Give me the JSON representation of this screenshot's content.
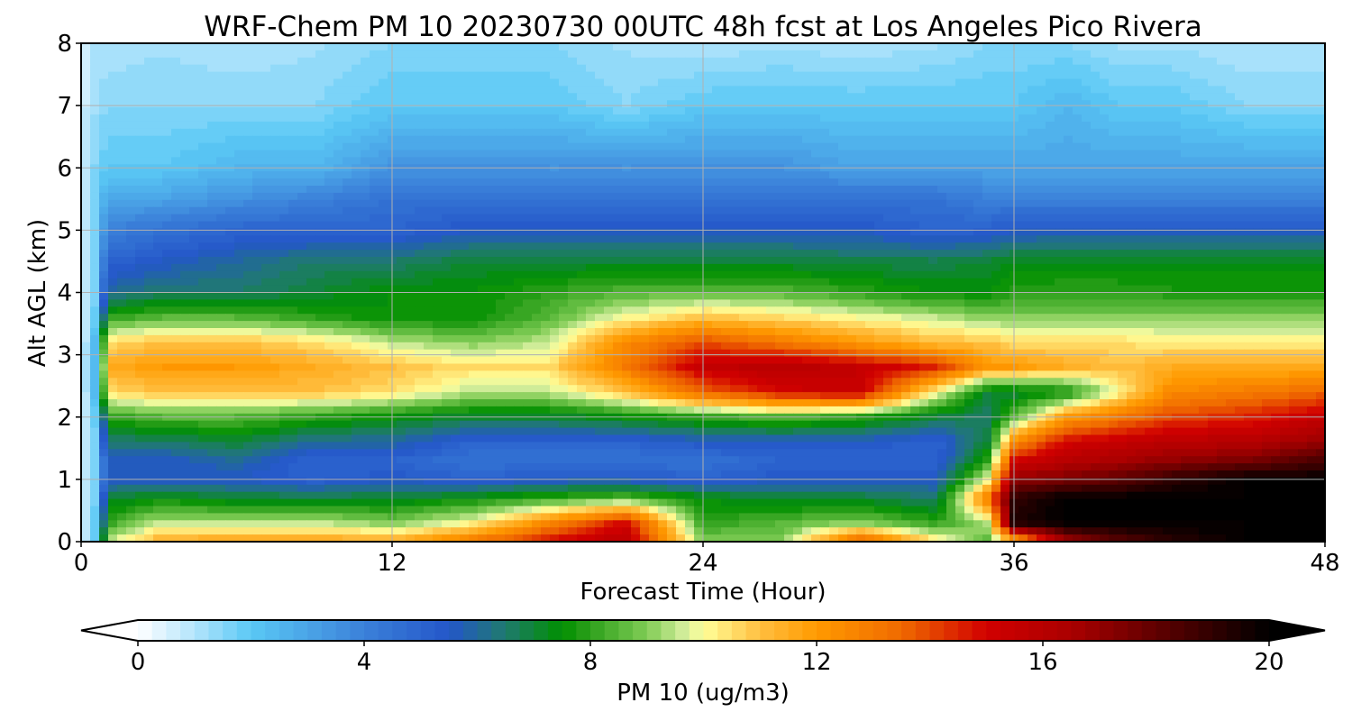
{
  "chart_data": {
    "type": "heatmap",
    "title": "WRF-Chem PM 10  20230730 00UTC 48h fcst at Los Angeles Pico Rivera",
    "xlabel": "Forecast Time (Hour)",
    "ylabel": "Alt AGL (km)",
    "xlim": [
      0,
      48
    ],
    "ylim": [
      0,
      8
    ],
    "x_ticks": [
      "0",
      "12",
      "24",
      "36",
      "48"
    ],
    "y_ticks": [
      "0",
      "1",
      "2",
      "3",
      "4",
      "5",
      "6",
      "7",
      "8"
    ],
    "grid": true,
    "colorbar": {
      "label": "PM 10  (ug/m3)",
      "range": [
        0,
        20
      ],
      "ticks": [
        "0",
        "4",
        "8",
        "12",
        "16",
        "20"
      ],
      "extend": "both",
      "placement": "bottom",
      "color_stops": [
        [
          0,
          "#ffffff"
        ],
        [
          1,
          "#b3e5fc"
        ],
        [
          2,
          "#5ac8f5"
        ],
        [
          4,
          "#3b80d9"
        ],
        [
          5.5,
          "#2457c9"
        ],
        [
          6.5,
          "#1f7a6e"
        ],
        [
          7.5,
          "#009000"
        ],
        [
          8,
          "#2ea01c"
        ],
        [
          9,
          "#80cc55"
        ],
        [
          9.7,
          "#d8f0a0"
        ],
        [
          10,
          "#ffff99"
        ],
        [
          11,
          "#ffbf40"
        ],
        [
          12,
          "#ff9a00"
        ],
        [
          13.5,
          "#f06a00"
        ],
        [
          15,
          "#d10000"
        ],
        [
          16.5,
          "#aa0000"
        ],
        [
          18,
          "#600000"
        ],
        [
          20,
          "#000000"
        ]
      ]
    },
    "field_description_levels": {
      "hours": [
        0,
        0.5,
        1,
        3,
        6,
        9,
        12,
        15,
        18,
        21,
        24,
        27,
        30,
        33,
        35,
        36,
        38,
        40,
        42,
        45,
        48
      ],
      "altitudes_km": [
        0,
        0.3,
        0.7,
        1.0,
        1.3,
        1.6,
        2.0,
        2.4,
        2.8,
        3.2,
        3.6,
        4.0,
        4.5,
        5.0,
        5.5,
        6.0,
        7.0,
        8.0
      ],
      "values": [
        [
          0.5,
          1.5,
          9.5,
          11.5,
          11.8,
          11.8,
          11.5,
          13.0,
          15.0,
          16.0,
          9.0,
          9.0,
          14.0,
          10.5,
          8.5,
          11.0,
          16.5,
          18.0,
          19.0,
          20.0,
          20.0
        ],
        [
          0.5,
          1.5,
          8.0,
          9.5,
          9.5,
          9.5,
          9.0,
          10.0,
          12.5,
          15.0,
          8.0,
          8.5,
          9.0,
          8.0,
          9.5,
          19.5,
          20.0,
          20.0,
          20.0,
          20.0,
          20.0
        ],
        [
          0.5,
          1.5,
          7.0,
          7.5,
          7.0,
          7.0,
          7.0,
          7.5,
          8.0,
          8.5,
          7.5,
          7.0,
          7.0,
          6.5,
          13.0,
          19.0,
          20.0,
          20.0,
          20.0,
          20.0,
          20.0
        ],
        [
          0.5,
          1.5,
          5.5,
          5.5,
          5.5,
          5.0,
          5.5,
          5.0,
          5.5,
          5.5,
          5.0,
          5.5,
          5.5,
          5.5,
          10.0,
          17.0,
          17.5,
          18.0,
          19.0,
          20.0,
          20.0
        ],
        [
          0.5,
          1.5,
          5.5,
          5.5,
          6.0,
          5.0,
          5.0,
          4.5,
          4.5,
          4.5,
          4.5,
          5.0,
          5.0,
          5.0,
          8.0,
          15.0,
          16.0,
          16.5,
          17.0,
          17.5,
          18.5
        ],
        [
          0.5,
          1.5,
          6.5,
          6.5,
          7.0,
          6.0,
          6.0,
          5.0,
          5.0,
          5.0,
          5.5,
          5.5,
          5.5,
          5.0,
          7.0,
          12.5,
          15.0,
          15.5,
          16.0,
          16.0,
          17.0
        ],
        [
          0.5,
          1.5,
          8.0,
          8.5,
          8.5,
          8.0,
          7.5,
          7.0,
          7.0,
          7.5,
          8.0,
          8.5,
          8.0,
          7.0,
          6.5,
          8.5,
          12.0,
          13.0,
          14.0,
          14.5,
          15.5
        ],
        [
          0.5,
          2.0,
          10.5,
          11.0,
          11.0,
          11.0,
          10.5,
          9.5,
          9.5,
          11.0,
          13.5,
          15.0,
          15.5,
          10.0,
          7.0,
          7.0,
          7.5,
          10.0,
          12.5,
          13.0,
          13.5
        ],
        [
          0.5,
          2.0,
          11.5,
          12.0,
          12.0,
          11.5,
          11.0,
          10.5,
          10.5,
          13.0,
          15.5,
          16.0,
          15.5,
          14.5,
          12.0,
          12.0,
          11.5,
          11.0,
          11.5,
          11.5,
          11.5
        ],
        [
          0.5,
          2.0,
          10.5,
          11.0,
          11.0,
          10.5,
          9.5,
          9.0,
          9.5,
          12.5,
          14.0,
          13.0,
          12.0,
          11.0,
          11.0,
          10.5,
          10.5,
          10.5,
          10.2,
          10.2,
          10.2
        ],
        [
          0.5,
          1.5,
          8.0,
          8.5,
          8.5,
          8.0,
          7.5,
          7.5,
          8.5,
          10.0,
          11.0,
          10.5,
          10.0,
          9.5,
          9.0,
          9.0,
          9.0,
          9.0,
          9.0,
          9.0,
          9.0
        ],
        [
          0.5,
          1.5,
          6.0,
          6.5,
          6.5,
          7.0,
          7.5,
          7.5,
          8.0,
          8.5,
          8.5,
          8.5,
          8.0,
          7.5,
          7.5,
          8.0,
          8.0,
          8.0,
          7.8,
          7.8,
          7.8
        ],
        [
          0.5,
          1.5,
          5.0,
          5.5,
          6.0,
          6.5,
          6.5,
          7.0,
          7.0,
          7.0,
          7.0,
          7.0,
          6.8,
          6.8,
          7.0,
          7.2,
          7.3,
          7.3,
          7.3,
          7.3,
          7.3
        ],
        [
          0.5,
          1.5,
          4.0,
          4.5,
          5.0,
          5.0,
          5.0,
          5.5,
          5.5,
          5.5,
          5.5,
          5.5,
          5.5,
          5.0,
          5.2,
          5.5,
          5.5,
          5.5,
          5.5,
          5.5,
          5.5
        ],
        [
          0.5,
          1.5,
          3.0,
          3.0,
          3.5,
          4.0,
          4.5,
          4.5,
          4.5,
          4.5,
          4.5,
          4.5,
          4.5,
          4.5,
          4.0,
          4.0,
          4.0,
          4.0,
          4.0,
          4.0,
          4.0
        ],
        [
          0.5,
          1.5,
          2.0,
          2.0,
          2.5,
          2.5,
          3.5,
          3.5,
          3.5,
          3.5,
          3.5,
          3.5,
          3.0,
          3.0,
          3.0,
          3.0,
          3.0,
          3.0,
          3.0,
          3.0,
          3.0
        ],
        [
          0.5,
          1.2,
          1.5,
          1.5,
          1.5,
          1.5,
          2.0,
          2.0,
          2.0,
          1.5,
          2.0,
          2.0,
          2.0,
          2.0,
          2.0,
          2.0,
          2.5,
          2.0,
          2.0,
          1.5,
          1.5
        ],
        [
          0.3,
          1.0,
          1.0,
          1.2,
          1.0,
          1.2,
          1.5,
          1.5,
          1.5,
          1.2,
          1.0,
          1.2,
          1.0,
          1.2,
          1.5,
          1.5,
          1.5,
          1.2,
          1.2,
          1.0,
          1.0
        ]
      ]
    }
  }
}
